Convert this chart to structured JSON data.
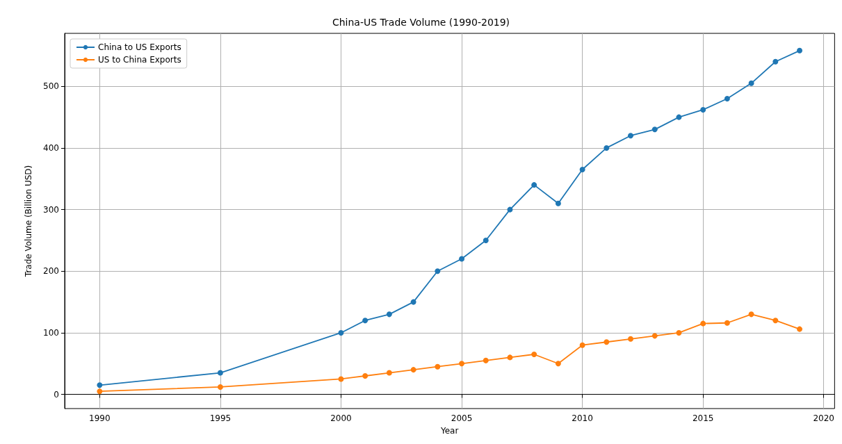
{
  "chart_data": {
    "type": "line",
    "title": "China-US Trade Volume (1990-2019)",
    "xlabel": "Year",
    "ylabel": "Trade Volume (Billion USD)",
    "x": [
      1990,
      1995,
      2000,
      2001,
      2002,
      2003,
      2004,
      2005,
      2006,
      2007,
      2008,
      2009,
      2010,
      2011,
      2012,
      2013,
      2014,
      2015,
      2016,
      2017,
      2018,
      2019
    ],
    "series": [
      {
        "name": "China to US Exports",
        "color": "#1f77b4",
        "values": [
          15,
          35,
          100,
          120,
          130,
          150,
          200,
          220,
          250,
          300,
          340,
          310,
          365,
          400,
          420,
          430,
          450,
          462,
          480,
          505,
          540,
          558
        ]
      },
      {
        "name": "US to China Exports",
        "color": "#ff7f0e",
        "values": [
          5,
          12,
          25,
          30,
          35,
          40,
          45,
          50,
          55,
          60,
          65,
          50,
          80,
          85,
          90,
          95,
          100,
          115,
          116,
          130,
          120,
          106
        ]
      }
    ],
    "xlim": [
      1988.55,
      2020.45
    ],
    "xticks": [
      1990,
      1995,
      2000,
      2005,
      2010,
      2015,
      2020
    ],
    "ylim": [
      -23,
      586
    ],
    "yticks": [
      0,
      100,
      200,
      300,
      400,
      500
    ],
    "grid": true,
    "legend": "top left",
    "marker": "circle",
    "line_style": "solid"
  }
}
